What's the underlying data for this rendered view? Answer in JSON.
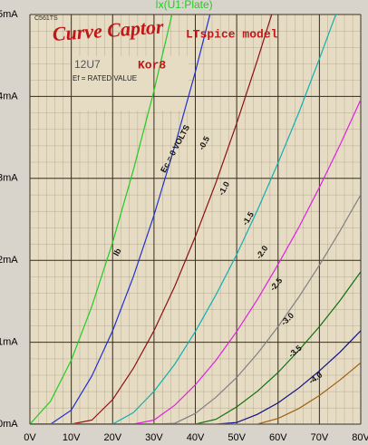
{
  "chart_data": {
    "type": "line",
    "title": "Ix(U1:Plate)",
    "x": [
      0,
      5,
      10,
      15,
      20,
      25,
      30,
      35,
      40,
      45,
      50,
      55,
      60,
      65,
      70,
      75,
      80
    ],
    "series": [
      {
        "color": "#22cc22",
        "values": [
          0,
          0.28,
          0.78,
          1.44,
          2.22,
          3.1,
          4.07,
          5.14,
          null,
          null,
          null,
          null,
          null,
          null,
          null,
          null,
          null
        ]
      },
      {
        "color": "#2030d0",
        "values": [
          0,
          0,
          0.17,
          0.59,
          1.14,
          1.8,
          2.55,
          3.39,
          4.3,
          5.29,
          null,
          null,
          null,
          null,
          null,
          null,
          null
        ]
      },
      {
        "color": "#8b1010",
        "values": [
          0,
          0,
          0,
          0.05,
          0.3,
          0.68,
          1.14,
          1.68,
          2.29,
          2.95,
          3.67,
          4.44,
          5.25,
          null,
          null,
          null,
          null
        ]
      },
      {
        "color": "#10b0b0",
        "values": [
          0,
          0,
          0,
          0,
          0,
          0.14,
          0.4,
          0.73,
          1.13,
          1.58,
          2.07,
          2.61,
          3.19,
          3.8,
          4.46,
          5.14,
          null
        ]
      },
      {
        "color": "#e020e0",
        "values": [
          0,
          0,
          0,
          0,
          0,
          0,
          0.05,
          0.23,
          0.48,
          0.78,
          1.13,
          1.52,
          1.95,
          2.4,
          2.89,
          3.41,
          3.96
        ]
      },
      {
        "color": "#808080",
        "values": [
          0,
          0,
          0,
          0,
          0,
          0,
          0,
          0.01,
          0.13,
          0.33,
          0.57,
          0.86,
          1.19,
          1.55,
          1.94,
          2.36,
          2.8
        ]
      },
      {
        "color": "#107010",
        "values": [
          0,
          0,
          0,
          0,
          0,
          0,
          0,
          0,
          0,
          0.06,
          0.21,
          0.4,
          0.63,
          0.9,
          1.19,
          1.51,
          1.86
        ]
      },
      {
        "color": "#101080",
        "values": [
          0,
          0,
          0,
          0,
          0,
          0,
          0,
          0,
          0,
          0,
          0.02,
          0.12,
          0.26,
          0.44,
          0.65,
          0.88,
          1.14
        ]
      },
      {
        "color": "#a06010",
        "values": [
          0,
          0,
          0,
          0,
          0,
          0,
          0,
          0,
          0,
          0,
          0,
          0,
          0.07,
          0.19,
          0.35,
          0.54,
          0.75
        ]
      }
    ],
    "xlim": [
      0,
      80
    ],
    "xticks": [
      {
        "value": 0,
        "label": "0V"
      },
      {
        "value": 10,
        "label": "10V"
      },
      {
        "value": 20,
        "label": "20V"
      },
      {
        "value": 30,
        "label": "30V"
      },
      {
        "value": 40,
        "label": "40V"
      },
      {
        "value": 50,
        "label": "50V"
      },
      {
        "value": 60,
        "label": "60V"
      },
      {
        "value": 70,
        "label": "70V"
      },
      {
        "value": 80,
        "label": "80V"
      }
    ],
    "ylim": [
      0,
      5
    ],
    "yticks": [
      {
        "value": 0,
        "label": "0mA"
      },
      {
        "value": 1,
        "label": "1mA"
      },
      {
        "value": 2,
        "label": "2mA"
      },
      {
        "value": 3,
        "label": "3mA"
      },
      {
        "value": 4,
        "label": "4mA"
      },
      {
        "value": 5,
        "label": "5mA"
      }
    ],
    "grid": true,
    "annotations": [
      "C561TS",
      "Curve Captor",
      "LTspice model",
      "12U7",
      "Kor8",
      "Ef = RATED VALUE",
      "Ec = 0 VOLTS",
      "Ib",
      "-0.5",
      "-1.0",
      "-1.5",
      "-2.0",
      "-2.5",
      "-3.0",
      "-3.5",
      "-4.0"
    ]
  }
}
